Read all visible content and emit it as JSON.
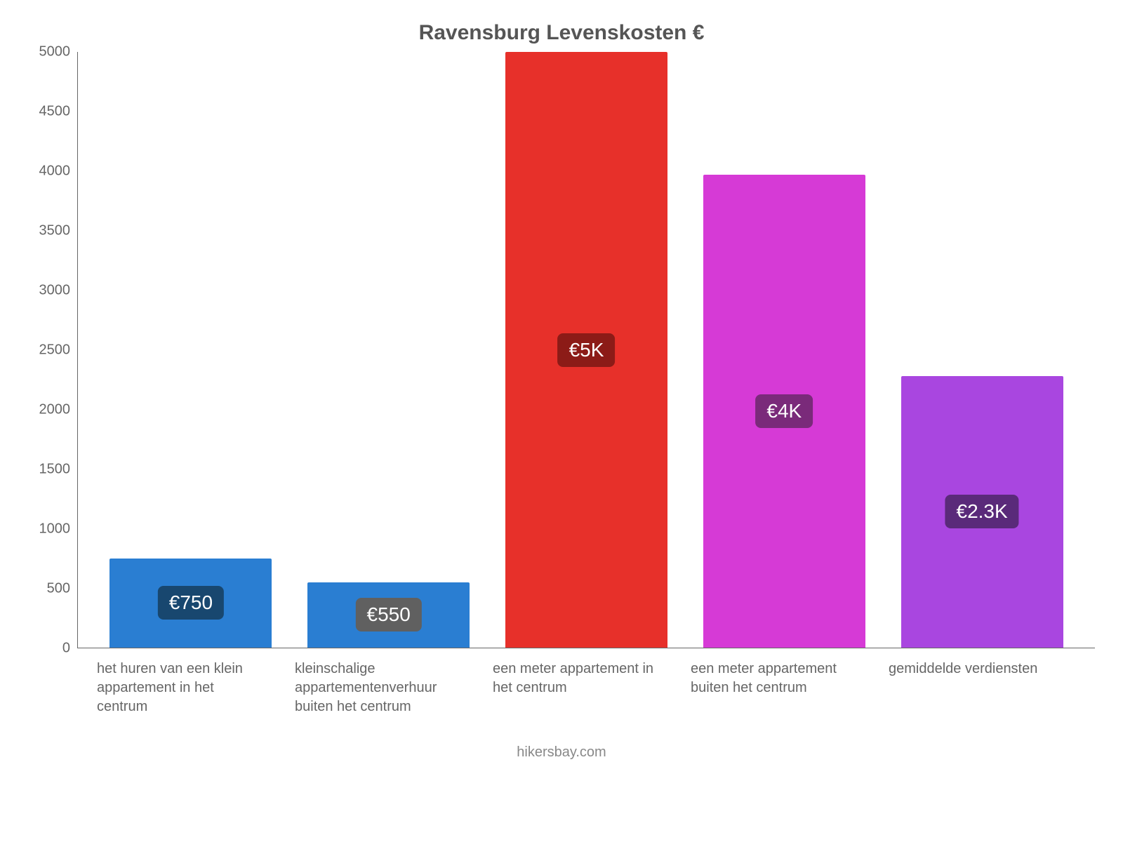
{
  "chart": {
    "type": "bar",
    "title": "Ravensburg Levenskosten €",
    "title_fontsize": 30,
    "title_color": "#555555",
    "background_color": "#ffffff",
    "axis_color": "#666666",
    "tick_font_color": "#666666",
    "tick_fontsize": 20,
    "xlabel_fontsize": 20,
    "xlabel_color": "#666666",
    "ylim": [
      0,
      5000
    ],
    "ytick_step": 500,
    "yticks": [
      0,
      500,
      1000,
      1500,
      2000,
      2500,
      3000,
      3500,
      4000,
      4500,
      5000
    ],
    "bar_width": 0.82,
    "value_label_fontsize": 28,
    "value_label_text_color": "#ffffff",
    "value_label_radius": 8,
    "attribution": "hikersbay.com",
    "attribution_color": "#888888",
    "attribution_fontsize": 20,
    "categories": [
      "het huren van een klein appartement in het centrum",
      "kleinschalige appartementenverhuur buiten het centrum",
      "een meter appartement in het centrum",
      "een meter appartement buiten het centrum",
      "gemiddelde verdiensten"
    ],
    "values": [
      750,
      550,
      5000,
      3970,
      2280
    ],
    "value_labels": [
      "€750",
      "€550",
      "€5K",
      "€4K",
      "€2.3K"
    ],
    "bar_colors": [
      "#2a7ed2",
      "#2a7ed2",
      "#e7302a",
      "#d63ad6",
      "#a946e0"
    ],
    "label_bg_colors": [
      "#18476f",
      "#606060",
      "#8c1b17",
      "#7a2a7a",
      "#5a2a7a"
    ]
  }
}
